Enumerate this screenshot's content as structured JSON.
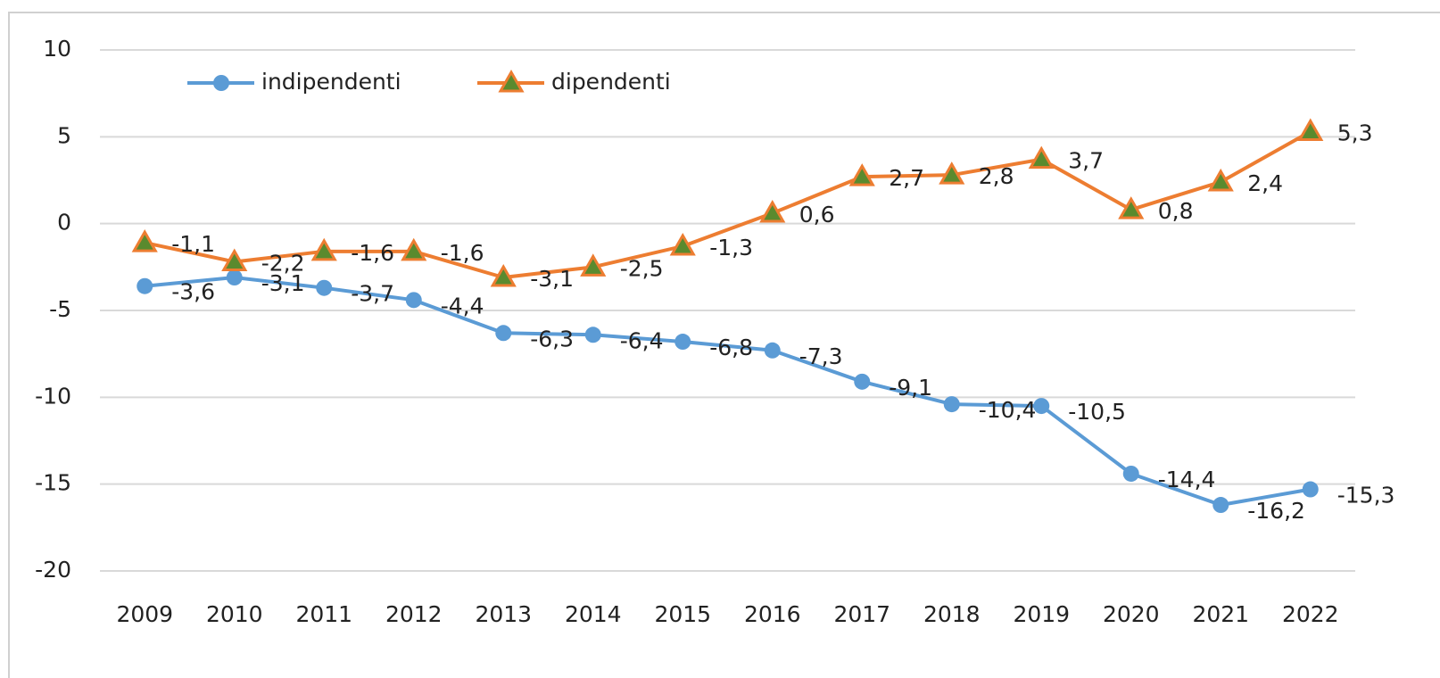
{
  "chart_data": {
    "type": "line",
    "categories": [
      "2009",
      "2010",
      "2011",
      "2012",
      "2013",
      "2014",
      "2015",
      "2016",
      "2017",
      "2018",
      "2019",
      "2020",
      "2021",
      "2022"
    ],
    "series": [
      {
        "name": "indipendenti",
        "color": "#5b9bd5",
        "marker": "circle",
        "values": [
          -3.6,
          -3.1,
          -3.7,
          -4.4,
          -6.3,
          -6.4,
          -6.8,
          -7.3,
          -9.1,
          -10.4,
          -10.5,
          -14.4,
          -16.2,
          -15.3
        ],
        "value_labels": [
          "-3,6",
          "-3,1",
          "-3,7",
          "-4,4",
          "-6,3",
          "-6,4",
          "-6,8",
          "-7,3",
          "-9,1",
          "-10,4",
          "-10,5",
          "-14,4",
          "-16,2",
          "-15,3"
        ]
      },
      {
        "name": "dipendenti",
        "color": "#ed7d31",
        "marker": "triangle",
        "marker_fill": "#5a8a2e",
        "values": [
          -1.1,
          -2.2,
          -1.6,
          -1.6,
          -3.1,
          -2.5,
          -1.3,
          0.6,
          2.7,
          2.8,
          3.7,
          0.8,
          2.4,
          5.3
        ],
        "value_labels": [
          "-1,1",
          "-2,2",
          "-1,6",
          "-1,6",
          "-3,1",
          "-2,5",
          "-1,3",
          "0,6",
          "2,7",
          "2,8",
          "3,7",
          "0,8",
          "2,4",
          "5,3"
        ]
      }
    ],
    "ylim": [
      -20,
      10
    ],
    "yticks": [
      -20,
      -15,
      -10,
      -5,
      0,
      5,
      10
    ],
    "grid": true,
    "legend": "top-left"
  }
}
